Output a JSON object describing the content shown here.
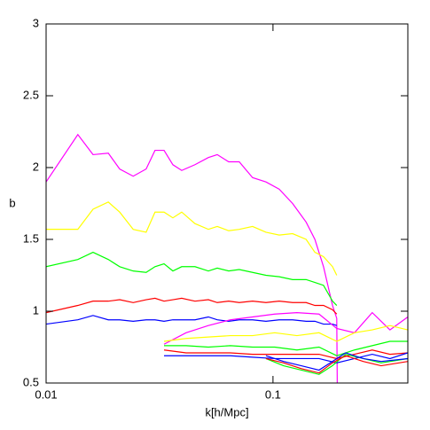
{
  "chart_data": {
    "type": "line",
    "xlabel": "k[h/Mpc]",
    "ylabel": "b",
    "xscale": "log",
    "xlim": [
      0.01,
      0.393
    ],
    "ylim": [
      0.5,
      3
    ],
    "xticks": [
      0.01,
      0.1
    ],
    "yticks": [
      0.5,
      1,
      1.5,
      2,
      2.5,
      3
    ],
    "series": [
      {
        "color": "#ff00ff",
        "x": [
          0.01,
          0.0138,
          0.0161,
          0.0188,
          0.0211,
          0.0242,
          0.0276,
          0.0302,
          0.0331,
          0.0362,
          0.0396,
          0.0453,
          0.0519,
          0.0568,
          0.0638,
          0.071,
          0.0813,
          0.0931,
          0.1065,
          0.122,
          0.14,
          0.153,
          0.167,
          0.183,
          0.191,
          0.192
        ],
        "values": [
          1.9,
          2.23,
          2.09,
          2.1,
          1.99,
          1.94,
          1.99,
          2.12,
          2.12,
          2.02,
          1.98,
          2.02,
          2.07,
          2.09,
          2.04,
          2.04,
          1.93,
          1.9,
          1.85,
          1.75,
          1.62,
          1.5,
          1.31,
          1.04,
          0.95,
          0.5
        ]
      },
      {
        "color": "#ffff00",
        "x": [
          0.01,
          0.0138,
          0.0161,
          0.0188,
          0.0211,
          0.0242,
          0.0276,
          0.0302,
          0.0331,
          0.0362,
          0.0396,
          0.0453,
          0.0519,
          0.0568,
          0.0638,
          0.071,
          0.0813,
          0.0931,
          0.1065,
          0.122,
          0.14,
          0.153,
          0.167,
          0.183,
          0.191
        ],
        "values": [
          1.57,
          1.57,
          1.71,
          1.76,
          1.69,
          1.57,
          1.55,
          1.69,
          1.69,
          1.65,
          1.69,
          1.61,
          1.57,
          1.59,
          1.56,
          1.57,
          1.59,
          1.55,
          1.53,
          1.54,
          1.5,
          1.41,
          1.38,
          1.31,
          1.25
        ]
      },
      {
        "color": "#00ff00",
        "x": [
          0.01,
          0.0138,
          0.0161,
          0.0188,
          0.0211,
          0.0242,
          0.0276,
          0.0302,
          0.0331,
          0.0362,
          0.0396,
          0.0453,
          0.0519,
          0.0568,
          0.0638,
          0.071,
          0.0813,
          0.0931,
          0.1065,
          0.122,
          0.14,
          0.153,
          0.167,
          0.183,
          0.191
        ],
        "values": [
          1.31,
          1.36,
          1.41,
          1.36,
          1.31,
          1.28,
          1.27,
          1.31,
          1.33,
          1.28,
          1.31,
          1.31,
          1.28,
          1.3,
          1.28,
          1.29,
          1.27,
          1.25,
          1.24,
          1.22,
          1.22,
          1.2,
          1.18,
          1.07,
          1.04
        ]
      },
      {
        "color": "#ff0000",
        "x": [
          0.01,
          0.0138,
          0.0161,
          0.0188,
          0.0211,
          0.0242,
          0.0276,
          0.0302,
          0.0331,
          0.0362,
          0.0396,
          0.0453,
          0.0519,
          0.0568,
          0.0638,
          0.071,
          0.0813,
          0.0931,
          0.1065,
          0.122,
          0.14,
          0.153,
          0.167,
          0.183,
          0.191
        ],
        "values": [
          0.99,
          1.04,
          1.07,
          1.07,
          1.08,
          1.06,
          1.08,
          1.09,
          1.07,
          1.08,
          1.09,
          1.07,
          1.08,
          1.06,
          1.07,
          1.06,
          1.07,
          1.06,
          1.07,
          1.06,
          1.06,
          1.04,
          1.04,
          1.01,
          0.98
        ]
      },
      {
        "color": "#0000ff",
        "x": [
          0.01,
          0.0138,
          0.0161,
          0.0188,
          0.0211,
          0.0242,
          0.0276,
          0.0302,
          0.0331,
          0.0362,
          0.0396,
          0.0453,
          0.0519,
          0.0568,
          0.0638,
          0.071,
          0.0813,
          0.0931,
          0.1065,
          0.122,
          0.14,
          0.153,
          0.167,
          0.183,
          0.191
        ],
        "values": [
          0.91,
          0.94,
          0.97,
          0.94,
          0.94,
          0.93,
          0.94,
          0.94,
          0.93,
          0.94,
          0.94,
          0.94,
          0.96,
          0.94,
          0.93,
          0.94,
          0.94,
          0.93,
          0.94,
          0.94,
          0.93,
          0.93,
          0.91,
          0.91,
          0.9
        ]
      },
      {
        "color": "#ff00ff",
        "x": [
          0.0331,
          0.0414,
          0.0519,
          0.0649,
          0.0813,
          0.1018,
          0.1275,
          0.1596,
          0.191,
          0.2287,
          0.2738,
          0.3278,
          0.393
        ],
        "values": [
          0.77,
          0.85,
          0.9,
          0.94,
          0.96,
          0.98,
          0.99,
          0.98,
          0.88,
          0.85,
          0.99,
          0.87,
          0.96
        ]
      },
      {
        "color": "#ffff00",
        "x": [
          0.0331,
          0.0414,
          0.0519,
          0.0649,
          0.0813,
          0.1018,
          0.1275,
          0.1596,
          0.191,
          0.2287,
          0.2738,
          0.3278,
          0.393
        ],
        "values": [
          0.79,
          0.81,
          0.82,
          0.83,
          0.83,
          0.85,
          0.83,
          0.85,
          0.79,
          0.85,
          0.87,
          0.9,
          0.87
        ]
      },
      {
        "color": "#00ff00",
        "x": [
          0.0331,
          0.0414,
          0.0519,
          0.0649,
          0.0813,
          0.1018,
          0.1275,
          0.1596,
          0.191,
          0.2287,
          0.2738,
          0.3278,
          0.393
        ],
        "values": [
          0.76,
          0.76,
          0.75,
          0.76,
          0.75,
          0.75,
          0.73,
          0.75,
          0.69,
          0.73,
          0.76,
          0.79,
          0.79
        ]
      },
      {
        "color": "#ff0000",
        "x": [
          0.0331,
          0.0414,
          0.0519,
          0.0649,
          0.0813,
          0.1018,
          0.1275,
          0.1596,
          0.191,
          0.2287,
          0.2738,
          0.3278,
          0.393
        ],
        "values": [
          0.73,
          0.71,
          0.71,
          0.71,
          0.7,
          0.7,
          0.7,
          0.7,
          0.67,
          0.7,
          0.73,
          0.7,
          0.71
        ]
      },
      {
        "color": "#0000ff",
        "x": [
          0.0331,
          0.0414,
          0.0519,
          0.0649,
          0.0813,
          0.1018,
          0.1275,
          0.1596,
          0.191,
          0.2287,
          0.2738,
          0.3278,
          0.393
        ],
        "values": [
          0.69,
          0.69,
          0.69,
          0.69,
          0.68,
          0.67,
          0.67,
          0.67,
          0.64,
          0.67,
          0.7,
          0.67,
          0.71
        ]
      },
      {
        "color": "#00ff00",
        "x": [
          0.0931,
          0.1114,
          0.1334,
          0.1596,
          0.1827,
          0.2091,
          0.25,
          0.2997,
          0.393
        ],
        "values": [
          0.67,
          0.62,
          0.59,
          0.56,
          0.62,
          0.7,
          0.67,
          0.64,
          0.67
        ]
      },
      {
        "color": "#ff0000",
        "x": [
          0.0931,
          0.1114,
          0.1334,
          0.1596,
          0.1827,
          0.2091,
          0.25,
          0.2997,
          0.393
        ],
        "values": [
          0.67,
          0.64,
          0.6,
          0.57,
          0.64,
          0.69,
          0.65,
          0.62,
          0.65
        ]
      },
      {
        "color": "#0000ff",
        "x": [
          0.0931,
          0.1114,
          0.1334,
          0.1596,
          0.1827,
          0.2091,
          0.25,
          0.2997,
          0.393
        ],
        "values": [
          0.69,
          0.65,
          0.62,
          0.59,
          0.65,
          0.71,
          0.67,
          0.65,
          0.67
        ]
      }
    ]
  }
}
